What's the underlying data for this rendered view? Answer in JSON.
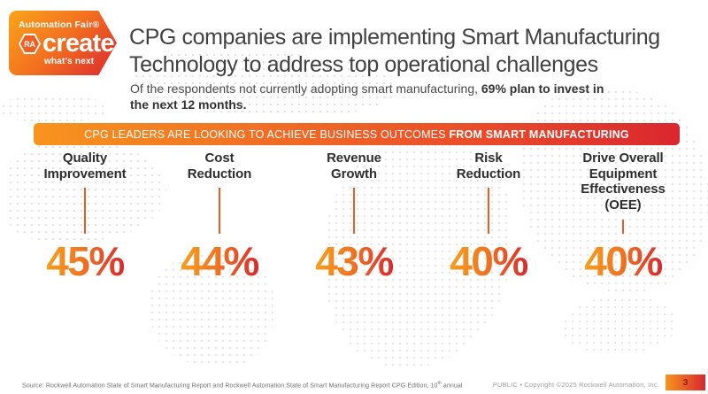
{
  "logo": {
    "event_name": "Automation Fair®",
    "monogram": "RA",
    "brand": "create",
    "tagline": "what's next"
  },
  "header": {
    "title_line1": "CPG companies are implementing Smart Manufacturing",
    "title_line2": "Technology to address top operational challenges",
    "subtitle_regular": "Of the respondents not currently adopting smart manufacturing, ",
    "subtitle_bold": "69% plan to invest in the next 12 months."
  },
  "banner": {
    "text_regular": "CPG LEADERS ARE LOOKING TO ACHIEVE BUSINESS OUTCOMES ",
    "text_bold": "FROM SMART MANUFACTURING"
  },
  "stats": [
    {
      "label": "Quality\nImprovement",
      "value": "45%"
    },
    {
      "label": "Cost\nReduction",
      "value": "44%"
    },
    {
      "label": "Revenue\nGrowth",
      "value": "43%"
    },
    {
      "label": "Risk\nReduction",
      "value": "40%"
    },
    {
      "label": "Drive Overall\nEquipment\nEffectiveness\n(OEE)",
      "value": "40%"
    }
  ],
  "chart_data": {
    "type": "bar",
    "title": "CPG LEADERS ARE LOOKING TO ACHIEVE BUSINESS OUTCOMES FROM SMART MANUFACTURING",
    "categories": [
      "Quality Improvement",
      "Cost Reduction",
      "Revenue Growth",
      "Risk Reduction",
      "Drive Overall Equipment Effectiveness (OEE)"
    ],
    "values": [
      45,
      44,
      43,
      40,
      40
    ],
    "unit": "%",
    "annotation": "Of the respondents not currently adopting smart manufacturing, 69% plan to invest in the next 12 months.",
    "legend_position": "none",
    "grid": false
  },
  "footer": {
    "source_main": "Source: Rockwell Automation State of Smart Manufacturing Report and Rockwell Automation State of Smart Manufacturing Report CPG Edition, 10",
    "source_sup": "th",
    "source_tail": " annual",
    "legal": "PUBLIC • Copyright ©2025 Rockwell Automation, Inc.",
    "page_number": "3"
  },
  "colors": {
    "accent_orange": "#F7941E",
    "accent_red": "#D9272E",
    "gold": "#F6A21C",
    "tick_line_orange": "#F15A22",
    "title_gray": "#414141"
  }
}
